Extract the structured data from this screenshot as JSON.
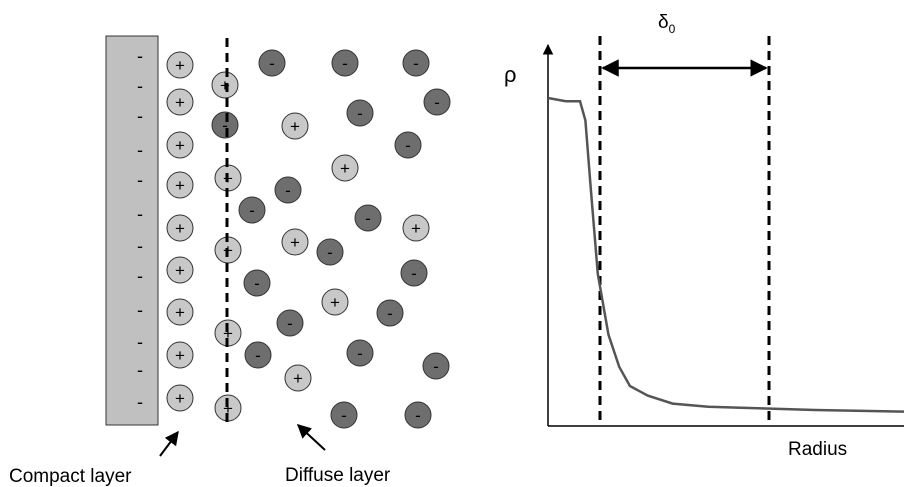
{
  "left_panel": {
    "electrode_charge_sign": "-",
    "cation_sign": "+",
    "anion_sign": "-",
    "compact_layer_label": "Compact layer",
    "diffuse_layer_label": "Diffuse layer",
    "colors": {
      "electrode": "#c0c0c0",
      "cation": "#c8c8c8",
      "anion": "#6e6e6e"
    }
  },
  "right_panel": {
    "y_axis_label": "ρ",
    "x_axis_label": "Radius",
    "thickness_symbol": "δ",
    "thickness_subscript": "0",
    "chart_data": {
      "type": "line",
      "xlabel": "Radius",
      "ylabel": "ρ",
      "series": [
        {
          "values_description_free": true,
          "x": [
            0,
            0.05,
            0.09,
            0.105,
            0.12,
            0.14,
            0.17,
            0.2,
            0.23,
            0.28,
            0.35,
            0.45,
            0.6,
            0.75,
            1.0
          ],
          "y": [
            1.0,
            0.99,
            0.99,
            0.93,
            0.72,
            0.45,
            0.26,
            0.16,
            0.1,
            0.07,
            0.045,
            0.035,
            0.03,
            0.025,
            0.02
          ]
        }
      ]
    }
  }
}
